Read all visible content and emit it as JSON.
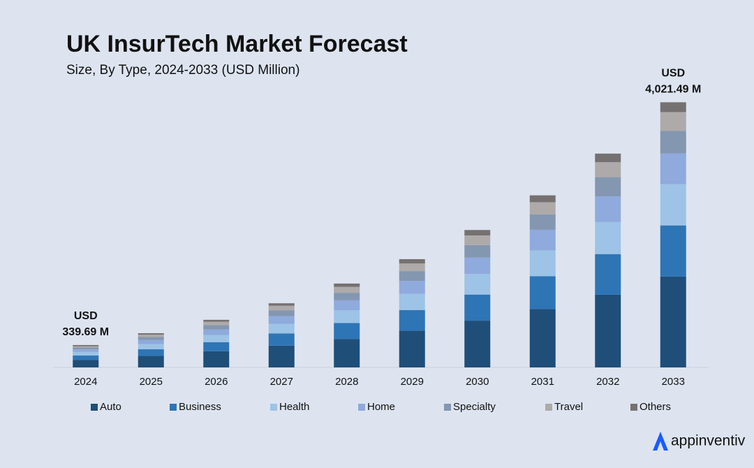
{
  "chart_data": {
    "type": "stacked_bar",
    "title": "UK InsurTech Market Forecast",
    "subtitle": "Size, By Type, 2024-2033 (USD Million)",
    "categories": [
      "2024",
      "2025",
      "2026",
      "2027",
      "2028",
      "2029",
      "2030",
      "2031",
      "2032",
      "2033"
    ],
    "series": [
      {
        "name": "Auto",
        "color": "#1f4e79",
        "values": [
          114.8,
          176,
          245,
          331,
          432,
          558,
          709,
          887,
          1103,
          1379.5
        ]
      },
      {
        "name": "Business",
        "color": "#2e75b6",
        "values": [
          67.0,
          99,
          137,
          185,
          242,
          312,
          396,
          496,
          616,
          774.5
        ]
      },
      {
        "name": "Health",
        "color": "#9dc3e6",
        "values": [
          52.6,
          78,
          108,
          146,
          191,
          246,
          313,
          392,
          486,
          625.9
        ]
      },
      {
        "name": "Home",
        "color": "#8faadc",
        "values": [
          38.3,
          62,
          87,
          117,
          153,
          197,
          250,
          313,
          389,
          466.9
        ]
      },
      {
        "name": "Specialty",
        "color": "#8497b0",
        "values": [
          28.7,
          47,
          65,
          88,
          114,
          148,
          188,
          235,
          292,
          339.5
        ]
      },
      {
        "name": "Travel",
        "color": "#aeaaaa",
        "values": [
          19.1,
          36,
          51,
          68,
          89,
          115,
          146,
          183,
          227,
          286.5
        ]
      },
      {
        "name": "Others",
        "color": "#767171",
        "values": [
          19.19,
          21,
          29,
          38,
          51,
          66,
          82,
          104,
          130,
          148.69
        ]
      }
    ],
    "ylim": [
      0,
      4100
    ],
    "annotations": [
      {
        "category_index": 0,
        "lines": [
          "USD",
          "339.69 M"
        ]
      },
      {
        "category_index": 9,
        "lines": [
          "USD",
          "4,021.49 M"
        ]
      }
    ],
    "brand": "appinventiv"
  }
}
